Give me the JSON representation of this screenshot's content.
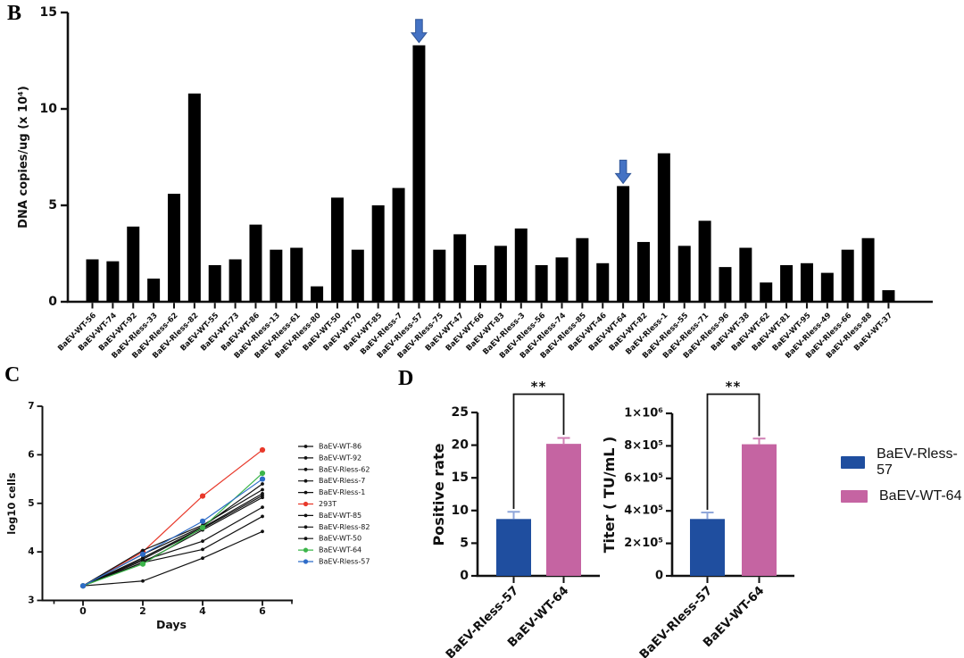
{
  "figure": {
    "panel_b_label": "B",
    "panel_c_label": "C",
    "panel_d_label": "D"
  },
  "chart_data": [
    {
      "id": "dna_copies",
      "type": "bar",
      "title": "",
      "xlabel": "",
      "ylabel": "DNA copies/ug (x 10⁴)",
      "ylim": [
        0,
        15
      ],
      "yticks": [
        0,
        5,
        10,
        15
      ],
      "grid": false,
      "bar_color": "#000000",
      "arrow_color": "#4472C4",
      "arrow_border": "#2F5597",
      "arrow_indices": [
        16,
        26
      ],
      "categories": [
        "BaEV-WT-56",
        "BaEV-WT-74",
        "BaEV-WT-92",
        "BaEV-Rless-33",
        "BaEV-Rless-62",
        "BaEV-Rless-82",
        "BaEV-WT-55",
        "BaEV-WT-73",
        "BaEV-WT-86",
        "BaEV-Rless-13",
        "BaEV-Rless-61",
        "BaEV-Rless-80",
        "BaEV-WT-50",
        "BaEV-WT-70",
        "BaEV-WT-85",
        "BaEV-Rless-7",
        "BaEV-Rless-57",
        "BaEV-Rless-75",
        "BaEV-WT-47",
        "BaEV-WT-66",
        "BaEV-WT-83",
        "BaEV-Rless-3",
        "BaEV-Rless-56",
        "BaEV-Rless-74",
        "BaEV-Rless-85",
        "BaEV-WT-46",
        "BaEV-WT-64",
        "BaEV-WT-82",
        "BaEV-Rless-1",
        "BaEV-Rless-55",
        "BaEV-Rless-71",
        "BaEV-Rless-96",
        "BaEV-WT-38",
        "BaEV-WT-62",
        "BaEV-WT-81",
        "BaEV-WT-95",
        "BaEV-Rless-49",
        "BaEV-Rless-66",
        "BaEV-Rless-88",
        "BaEV-WT-37"
      ],
      "values": [
        2.2,
        2.1,
        3.9,
        1.2,
        5.6,
        10.8,
        1.9,
        2.2,
        4.0,
        2.7,
        2.8,
        0.8,
        5.4,
        2.7,
        5.0,
        5.9,
        13.3,
        2.7,
        3.5,
        1.9,
        2.9,
        3.8,
        1.9,
        2.3,
        3.3,
        2.0,
        6.0,
        3.1,
        7.7,
        2.9,
        4.2,
        1.8,
        2.8,
        1.0,
        1.9,
        2.0,
        1.5,
        2.7,
        3.3,
        0.6
      ]
    },
    {
      "id": "growth",
      "type": "line",
      "title": "",
      "xlabel": "Days",
      "ylabel": "log10 cells",
      "xlim": [
        -1,
        7.5
      ],
      "ylim": [
        3,
        7
      ],
      "xticks": [
        0,
        2,
        4,
        6
      ],
      "yticks": [
        3,
        4,
        5,
        6,
        7
      ],
      "grid": false,
      "legend_position": "right",
      "x": [
        0,
        2,
        4,
        6
      ],
      "series": [
        {
          "name": "BaEV-WT-86",
          "color": "#111111",
          "values": [
            3.3,
            3.4,
            3.87,
            4.42
          ]
        },
        {
          "name": "BaEV-WT-92",
          "color": "#111111",
          "values": [
            3.3,
            3.78,
            4.05,
            4.73
          ]
        },
        {
          "name": "BaEV-Rless-62",
          "color": "#111111",
          "values": [
            3.3,
            3.82,
            4.22,
            4.92
          ]
        },
        {
          "name": "BaEV-Rless-7",
          "color": "#111111",
          "values": [
            3.3,
            3.78,
            4.45,
            5.12
          ]
        },
        {
          "name": "BaEV-Rless-1",
          "color": "#111111",
          "values": [
            3.3,
            3.85,
            4.48,
            5.16
          ]
        },
        {
          "name": "293T",
          "color": "#E8392B",
          "values": [
            3.3,
            4.0,
            5.15,
            6.1
          ]
        },
        {
          "name": "BaEV-WT-85",
          "color": "#111111",
          "values": [
            3.3,
            3.88,
            4.5,
            5.2
          ]
        },
        {
          "name": "BaEV-Rless-82",
          "color": "#111111",
          "values": [
            3.3,
            4.03,
            4.55,
            5.28
          ]
        },
        {
          "name": "BaEV-WT-50",
          "color": "#111111",
          "values": [
            3.3,
            3.95,
            4.52,
            5.4
          ]
        },
        {
          "name": "BaEV-WT-64",
          "color": "#3CB54A",
          "values": [
            3.3,
            3.75,
            4.5,
            5.62
          ]
        },
        {
          "name": "BaEV-Rless-57",
          "color": "#2E6CC8",
          "values": [
            3.3,
            3.95,
            4.63,
            5.5
          ]
        }
      ]
    },
    {
      "id": "positive_rate",
      "type": "bar",
      "title": "",
      "xlabel": "",
      "ylabel": "Positive rate",
      "ylim": [
        0,
        25
      ],
      "yticks": [
        0,
        5,
        10,
        15,
        20,
        25
      ],
      "ytick_labels": [
        "0",
        "5",
        "10",
        "15",
        "20",
        "25"
      ],
      "grid": false,
      "significance": "**",
      "categories": [
        "BaEV-Rless-57",
        "BaEV-WT-64"
      ],
      "values": [
        8.7,
        20.2
      ],
      "errors": [
        1.1,
        0.9
      ],
      "bar_colors": [
        "#1F4E9F",
        "#C564A2"
      ],
      "error_colors": [
        "#8FA6D9",
        "#D07FB4"
      ]
    },
    {
      "id": "titer",
      "type": "bar",
      "title": "",
      "xlabel": "",
      "ylabel": "Titer ( TU/mL )",
      "ylim": [
        0,
        1000000
      ],
      "yticks": [
        0,
        200000,
        400000,
        600000,
        800000,
        1000000
      ],
      "ytick_labels": [
        "0",
        "2×10⁵",
        "4×10⁵",
        "6×10⁵",
        "8×10⁵",
        "1×10⁶"
      ],
      "grid": false,
      "significance": "**",
      "categories": [
        "BaEV-Rless-57",
        "BaEV-WT-64"
      ],
      "values": [
        350000,
        810000
      ],
      "errors": [
        40000,
        35000
      ],
      "bar_colors": [
        "#1F4E9F",
        "#C564A2"
      ],
      "error_colors": [
        "#8FA6D9",
        "#D07FB4"
      ]
    }
  ],
  "legend_d": {
    "items": [
      {
        "label": "BaEV-Rless-57",
        "color": "#1F4E9F"
      },
      {
        "label": "BaEV-WT-64",
        "color": "#C564A2"
      }
    ]
  }
}
